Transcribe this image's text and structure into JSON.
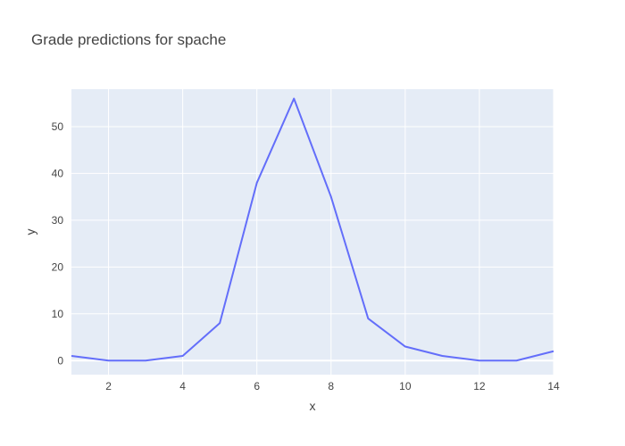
{
  "chart_data": {
    "type": "line",
    "title": "Grade predictions for spache",
    "xlabel": "x",
    "ylabel": "y",
    "xlim": [
      1,
      14
    ],
    "ylim": [
      -3,
      58
    ],
    "x_ticks": [
      2,
      4,
      6,
      8,
      10,
      12,
      14
    ],
    "y_ticks": [
      0,
      10,
      20,
      30,
      40,
      50
    ],
    "grid": true,
    "series": [
      {
        "x": [
          1,
          2,
          3,
          4,
          5,
          6,
          7,
          8,
          9,
          10,
          11,
          12,
          13,
          14
        ],
        "y": [
          1,
          0,
          0,
          1,
          8,
          38,
          56,
          35,
          9,
          3,
          1,
          0,
          0,
          2
        ]
      }
    ],
    "colors": {
      "line": "#636efa",
      "plot_bg": "#e5ecf6",
      "grid": "#ffffff",
      "text": "#444444"
    }
  }
}
